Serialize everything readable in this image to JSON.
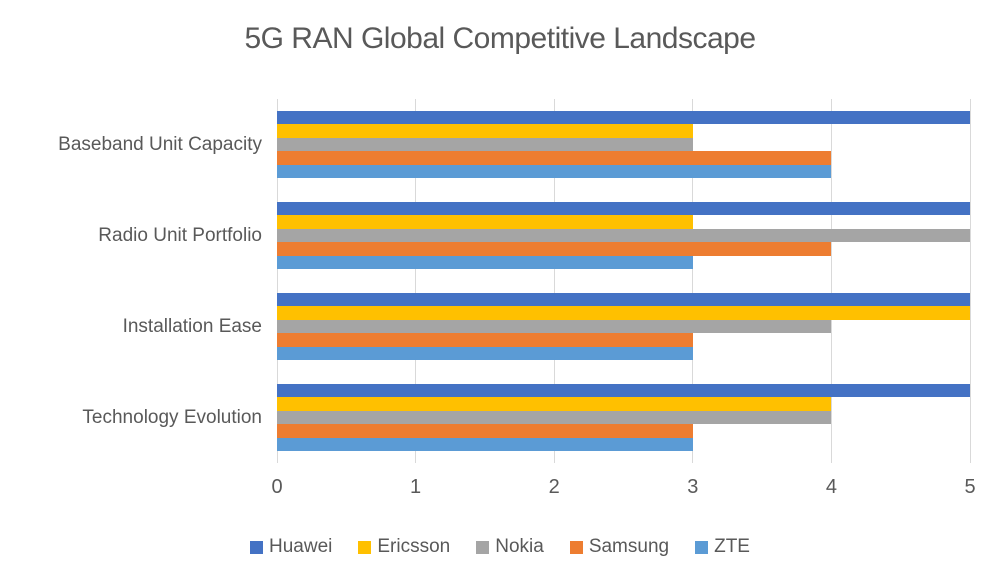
{
  "chart_data": {
    "type": "bar",
    "orientation": "horizontal",
    "title": "5G RAN Global Competitive Landscape",
    "categories": [
      "Baseband Unit Capacity",
      "Radio Unit Portfolio",
      "Installation Ease",
      "Technology Evolution"
    ],
    "series": [
      {
        "name": "Huawei",
        "color": "#4472C4",
        "values": [
          5,
          5,
          5,
          5
        ]
      },
      {
        "name": "Ericsson",
        "color": "#FFC000",
        "values": [
          3,
          3,
          5,
          4
        ]
      },
      {
        "name": "Nokia",
        "color": "#A5A5A5",
        "values": [
          3,
          5,
          4,
          4
        ]
      },
      {
        "name": "Samsung",
        "color": "#ED7D31",
        "values": [
          4,
          4,
          3,
          3
        ]
      },
      {
        "name": "ZTE",
        "color": "#5B9BD5",
        "values": [
          4,
          3,
          3,
          3
        ]
      }
    ],
    "xlim": [
      0,
      5
    ],
    "xticks": [
      "0",
      "1",
      "2",
      "3",
      "4",
      "5"
    ],
    "grid": true,
    "legend_position": "bottom",
    "gridline_color": "#D9D9D9",
    "text_color": "#595959"
  }
}
